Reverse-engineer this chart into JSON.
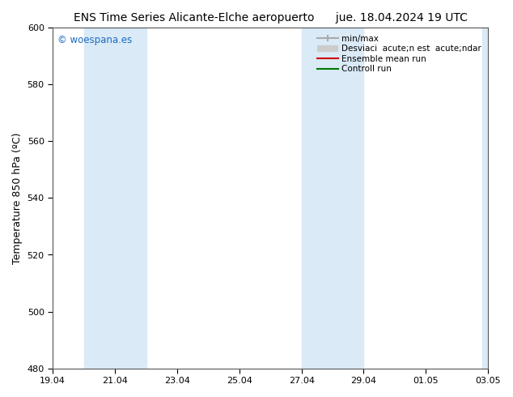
{
  "title_left": "ENS Time Series Alicante-Elche aeropuerto",
  "title_right": "jue. 18.04.2024 19 UTC",
  "ylabel": "Temperature 850 hPa (ºC)",
  "ylim": [
    480,
    600
  ],
  "yticks": [
    480,
    500,
    520,
    540,
    560,
    580,
    600
  ],
  "xlim": [
    0,
    14
  ],
  "xtick_positions": [
    0,
    2,
    4,
    6,
    8,
    10,
    12,
    14
  ],
  "xtick_labels": [
    "19.04",
    "21.04",
    "23.04",
    "25.04",
    "27.04",
    "29.04",
    "01.05",
    "03.05"
  ],
  "shaded_bands": [
    {
      "start": 1.0,
      "end": 3.0,
      "color": "#daeaf7"
    },
    {
      "start": 8.0,
      "end": 10.0,
      "color": "#daeaf7"
    },
    {
      "start": 13.8,
      "end": 14.0,
      "color": "#daeaf7"
    }
  ],
  "watermark": "© woespana.es",
  "watermark_color": "#1a6abf",
  "background_color": "#ffffff",
  "plot_bg_color": "#ffffff",
  "legend_label_minmax": "min/max",
  "legend_label_std": "Desviaci  acute;n est  acute;ndar",
  "legend_label_ens": "Ensemble mean run",
  "legend_label_ctrl": "Controll run",
  "legend_color_minmax": "#aaaaaa",
  "legend_color_std": "#cccccc",
  "legend_color_ens": "#cc0000",
  "legend_color_ctrl": "#007700",
  "title_fontsize": 10,
  "tick_fontsize": 8,
  "ylabel_fontsize": 9,
  "legend_fontsize": 7.5
}
